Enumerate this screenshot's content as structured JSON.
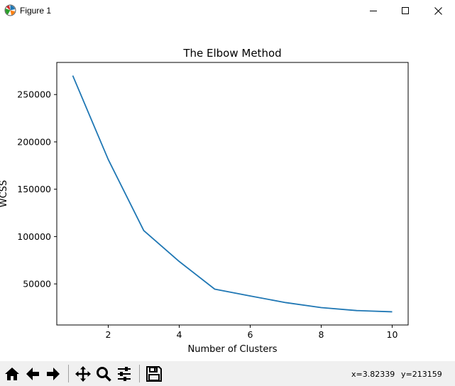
{
  "window": {
    "title": "Figure 1"
  },
  "icons": {
    "app": "matplotlib-figure-icon",
    "minimize": "minimize-icon",
    "maximize": "maximize-icon",
    "close": "close-icon"
  },
  "toolbar": {
    "buttons": [
      {
        "name": "home-button",
        "icon": "home-icon"
      },
      {
        "name": "back-button",
        "icon": "arrow-left-icon"
      },
      {
        "name": "forward-button",
        "icon": "arrow-right-icon"
      },
      {
        "name": "pan-button",
        "icon": "move-icon"
      },
      {
        "name": "zoom-button",
        "icon": "magnifier-icon"
      },
      {
        "name": "configure-subplots-button",
        "icon": "sliders-icon"
      },
      {
        "name": "save-button",
        "icon": "floppy-disk-icon"
      }
    ],
    "coords": {
      "x": "x=3.82339",
      "y": "y=213159"
    }
  },
  "chart_data": {
    "type": "line",
    "title": "The Elbow Method",
    "xlabel": "Number of Clusters",
    "ylabel": "WCSS",
    "x": [
      1,
      2,
      3,
      4,
      5,
      6,
      7,
      8,
      9,
      10
    ],
    "series": [
      {
        "values": [
          269981,
          181363,
          106348,
          73679,
          44449,
          37233,
          30259,
          25011,
          21851,
          20540
        ],
        "color": "#1f77b4"
      }
    ],
    "xlim": [
      0.55,
      10.45
    ],
    "ylim": [
      6618,
      283900
    ],
    "xticks": [
      2,
      4,
      6,
      8,
      10
    ],
    "yticks": [
      50000,
      100000,
      150000,
      200000,
      250000
    ],
    "grid": false
  }
}
